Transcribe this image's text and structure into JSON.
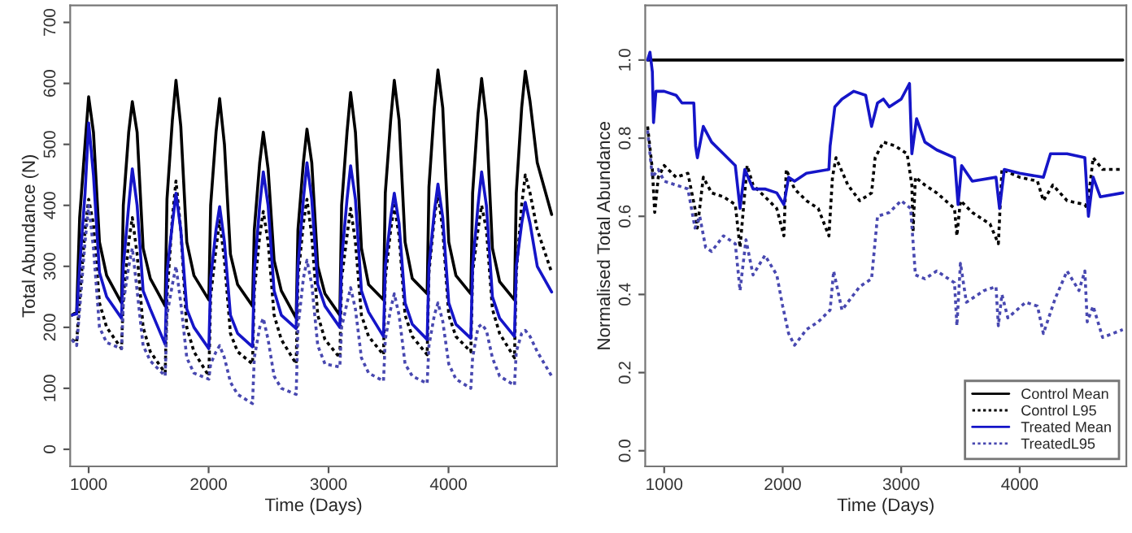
{
  "chart_data": [
    {
      "type": "line",
      "xlabel": "Time (Days)",
      "ylabel": "Total Abundance (N)",
      "xlim": [
        846,
        4904
      ],
      "ylim": [
        -28,
        728
      ],
      "xticks": [
        1000,
        2000,
        3000,
        4000
      ],
      "yticks": [
        0,
        100,
        200,
        300,
        400,
        500,
        600,
        700
      ],
      "grid": false,
      "legend": false,
      "marker": "none",
      "x": [
        860,
        900,
        925,
        970,
        1000,
        1040,
        1090,
        1150,
        1274,
        1289,
        1334,
        1364,
        1404,
        1454,
        1514,
        1638,
        1653,
        1698,
        1728,
        1768,
        1818,
        1878,
        2002,
        2017,
        2062,
        2092,
        2132,
        2182,
        2242,
        2366,
        2381,
        2426,
        2456,
        2496,
        2546,
        2606,
        2730,
        2745,
        2790,
        2820,
        2860,
        2910,
        2970,
        3094,
        3109,
        3154,
        3184,
        3224,
        3274,
        3334,
        3458,
        3473,
        3518,
        3548,
        3588,
        3638,
        3698,
        3822,
        3837,
        3882,
        3912,
        3952,
        4002,
        4062,
        4186,
        4201,
        4246,
        4276,
        4316,
        4366,
        4426,
        4550,
        4565,
        4610,
        4640,
        4680,
        4740,
        4860
      ],
      "series": [
        {
          "color": "#000000",
          "line_style": "solid",
          "values": [
            220,
            225,
            380,
            500,
            578,
            520,
            340,
            285,
            240,
            400,
            520,
            570,
            520,
            330,
            280,
            235,
            410,
            540,
            605,
            530,
            340,
            285,
            245,
            400,
            520,
            575,
            500,
            320,
            270,
            235,
            360,
            470,
            520,
            460,
            310,
            260,
            215,
            360,
            470,
            525,
            470,
            300,
            255,
            220,
            400,
            520,
            585,
            520,
            330,
            270,
            245,
            420,
            540,
            605,
            540,
            340,
            280,
            255,
            430,
            560,
            622,
            560,
            340,
            285,
            255,
            420,
            550,
            608,
            540,
            330,
            275,
            245,
            420,
            560,
            620,
            570,
            470,
            385
          ]
        },
        {
          "color": "#000000",
          "line_style": "dotted",
          "values": [
            180,
            175,
            250,
            360,
            410,
            370,
            240,
            200,
            165,
            250,
            340,
            380,
            320,
            200,
            160,
            125,
            250,
            380,
            440,
            360,
            200,
            160,
            120,
            250,
            330,
            375,
            310,
            190,
            160,
            140,
            260,
            350,
            390,
            340,
            220,
            180,
            140,
            280,
            370,
            410,
            350,
            220,
            180,
            150,
            280,
            350,
            395,
            340,
            220,
            185,
            155,
            280,
            360,
            400,
            350,
            220,
            185,
            155,
            290,
            380,
            420,
            360,
            220,
            185,
            160,
            290,
            360,
            400,
            360,
            230,
            190,
            150,
            290,
            400,
            450,
            420,
            360,
            290
          ]
        },
        {
          "color": "#1515c8",
          "line_style": "solid",
          "values": [
            220,
            222,
            300,
            420,
            535,
            450,
            290,
            250,
            215,
            300,
            400,
            460,
            400,
            260,
            230,
            172,
            290,
            370,
            420,
            360,
            230,
            200,
            165,
            280,
            360,
            398,
            340,
            220,
            190,
            168,
            290,
            400,
            455,
            400,
            260,
            220,
            198,
            300,
            410,
            470,
            410,
            270,
            235,
            200,
            310,
            410,
            465,
            410,
            260,
            225,
            185,
            300,
            380,
            420,
            370,
            240,
            205,
            180,
            300,
            390,
            435,
            380,
            240,
            205,
            182,
            300,
            400,
            455,
            400,
            250,
            215,
            185,
            300,
            370,
            405,
            370,
            300,
            258
          ]
        },
        {
          "color": "#4848b0",
          "line_style": "dotted",
          "values": [
            180,
            170,
            230,
            340,
            400,
            330,
            200,
            175,
            165,
            240,
            300,
            330,
            260,
            170,
            145,
            120,
            220,
            270,
            300,
            240,
            150,
            125,
            115,
            140,
            160,
            170,
            150,
            110,
            90,
            75,
            150,
            200,
            215,
            180,
            120,
            100,
            90,
            200,
            280,
            310,
            270,
            170,
            140,
            135,
            200,
            240,
            265,
            230,
            150,
            125,
            112,
            180,
            230,
            255,
            220,
            140,
            120,
            108,
            170,
            220,
            240,
            210,
            140,
            115,
            100,
            150,
            200,
            205,
            195,
            150,
            120,
            105,
            160,
            190,
            195,
            185,
            160,
            120
          ]
        }
      ]
    },
    {
      "type": "line",
      "xlabel": "Time (Days)",
      "ylabel": "Normalised Total Abundance",
      "xlim": [
        840,
        4900
      ],
      "ylim": [
        -0.04,
        1.14
      ],
      "xticks": [
        1000,
        2000,
        3000,
        4000
      ],
      "yticks": [
        {
          "value": 0,
          "label": "0.0"
        },
        0.2,
        0.4,
        0.6,
        0.8,
        {
          "value": 1,
          "label": "1.0"
        }
      ],
      "grid": false,
      "legend": "bottom right",
      "marker": "none",
      "series": [
        {
          "name": "Control Mean",
          "color": "#000000",
          "line_style": "solid",
          "x": [
            860,
            4870
          ],
          "values": [
            1.0,
            1.0
          ]
        },
        {
          "name": "Control L95",
          "color": "#000000",
          "line_style": "dotted",
          "x": [
            860,
            900,
            920,
            950,
            1000,
            1100,
            1200,
            1260,
            1280,
            1330,
            1400,
            1500,
            1600,
            1640,
            1700,
            1750,
            1850,
            1950,
            2010,
            2030,
            2100,
            2200,
            2300,
            2390,
            2420,
            2450,
            2550,
            2650,
            2750,
            2780,
            2850,
            2950,
            3050,
            3090,
            3100,
            3120,
            3200,
            3300,
            3450,
            3470,
            3500,
            3600,
            3750,
            3820,
            3850,
            4000,
            4150,
            4200,
            4280,
            4400,
            4550,
            4570,
            4620,
            4700,
            4870
          ],
          "values": [
            0.83,
            0.72,
            0.61,
            0.7,
            0.73,
            0.7,
            0.71,
            0.62,
            0.57,
            0.7,
            0.66,
            0.65,
            0.63,
            0.52,
            0.73,
            0.68,
            0.65,
            0.62,
            0.55,
            0.72,
            0.67,
            0.64,
            0.62,
            0.55,
            0.7,
            0.75,
            0.68,
            0.64,
            0.66,
            0.75,
            0.79,
            0.78,
            0.76,
            0.68,
            0.56,
            0.7,
            0.68,
            0.66,
            0.62,
            0.55,
            0.64,
            0.61,
            0.58,
            0.53,
            0.72,
            0.7,
            0.69,
            0.64,
            0.68,
            0.64,
            0.63,
            0.62,
            0.75,
            0.72,
            0.72
          ]
        },
        {
          "name": "Treated Mean",
          "color": "#1515c8",
          "line_style": "solid",
          "x": [
            860,
            880,
            900,
            910,
            930,
            1000,
            1100,
            1150,
            1250,
            1265,
            1280,
            1330,
            1400,
            1500,
            1600,
            1640,
            1680,
            1750,
            1850,
            1950,
            2010,
            2050,
            2100,
            2200,
            2390,
            2400,
            2440,
            2500,
            2600,
            2700,
            2750,
            2800,
            2850,
            2900,
            3000,
            3070,
            3090,
            3130,
            3200,
            3300,
            3450,
            3480,
            3510,
            3600,
            3800,
            3830,
            3870,
            4000,
            4200,
            4260,
            4400,
            4550,
            4580,
            4620,
            4680,
            4870
          ],
          "values": [
            1.0,
            1.02,
            0.97,
            0.84,
            0.92,
            0.92,
            0.91,
            0.89,
            0.89,
            0.78,
            0.75,
            0.83,
            0.79,
            0.76,
            0.73,
            0.62,
            0.72,
            0.67,
            0.67,
            0.66,
            0.63,
            0.7,
            0.69,
            0.71,
            0.72,
            0.78,
            0.88,
            0.9,
            0.92,
            0.91,
            0.83,
            0.89,
            0.9,
            0.88,
            0.9,
            0.94,
            0.76,
            0.85,
            0.79,
            0.77,
            0.75,
            0.63,
            0.73,
            0.69,
            0.7,
            0.62,
            0.72,
            0.71,
            0.7,
            0.76,
            0.76,
            0.75,
            0.6,
            0.7,
            0.65,
            0.66
          ]
        },
        {
          "name": "TreatedL95",
          "color": "#4848b0",
          "line_style": "dotted",
          "x": [
            860,
            900,
            950,
            1000,
            1100,
            1200,
            1260,
            1300,
            1350,
            1400,
            1500,
            1600,
            1640,
            1690,
            1750,
            1850,
            1950,
            2000,
            2050,
            2100,
            2200,
            2300,
            2400,
            2430,
            2500,
            2650,
            2750,
            2800,
            2900,
            3000,
            3080,
            3120,
            3200,
            3300,
            3450,
            3470,
            3500,
            3550,
            3700,
            3800,
            3820,
            3850,
            3900,
            4050,
            4150,
            4200,
            4300,
            4400,
            4500,
            4550,
            4570,
            4620,
            4700,
            4870
          ],
          "values": [
            0.82,
            0.7,
            0.72,
            0.69,
            0.68,
            0.67,
            0.57,
            0.6,
            0.52,
            0.51,
            0.55,
            0.53,
            0.41,
            0.54,
            0.45,
            0.5,
            0.45,
            0.37,
            0.3,
            0.27,
            0.31,
            0.33,
            0.36,
            0.46,
            0.36,
            0.42,
            0.44,
            0.6,
            0.61,
            0.64,
            0.62,
            0.45,
            0.44,
            0.46,
            0.43,
            0.32,
            0.48,
            0.38,
            0.41,
            0.42,
            0.32,
            0.4,
            0.34,
            0.38,
            0.37,
            0.3,
            0.39,
            0.46,
            0.41,
            0.46,
            0.33,
            0.37,
            0.29,
            0.31
          ]
        }
      ]
    }
  ]
}
